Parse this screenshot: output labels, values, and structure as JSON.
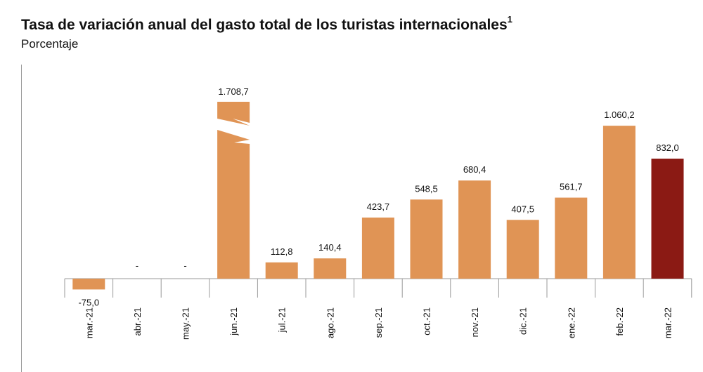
{
  "title": "Tasa de variación anual del gasto total de los turistas internacionales",
  "title_sup": "1",
  "subtitle": "Porcentaje",
  "colors": {
    "bar": "#E09455",
    "highlight": "#8B1A14",
    "axis": "#9a9a9a"
  },
  "chart_data": {
    "type": "bar",
    "categories": [
      "mar.-21",
      "abr.-21",
      "may.-21",
      "jun.-21",
      "jul.-21",
      "ago.-21",
      "sep.-21",
      "oct.-21",
      "nov.-21",
      "dic.-21",
      "ene.-22",
      "feb.-22",
      "mar.-22"
    ],
    "values": [
      -75.0,
      null,
      null,
      1708.7,
      112.8,
      140.4,
      423.7,
      548.5,
      680.4,
      407.5,
      561.7,
      1060.2,
      832.0
    ],
    "labels": [
      "-75,0",
      "-",
      "-",
      "1.708,7",
      "112,8",
      "140,4",
      "423,7",
      "548,5",
      "680,4",
      "407,5",
      "561,7",
      "1.060,2",
      "832,0"
    ],
    "broken_bars": [
      "jun.-21"
    ],
    "highlight": "mar.-22",
    "xlabel": "",
    "ylabel": "",
    "grid": false
  }
}
